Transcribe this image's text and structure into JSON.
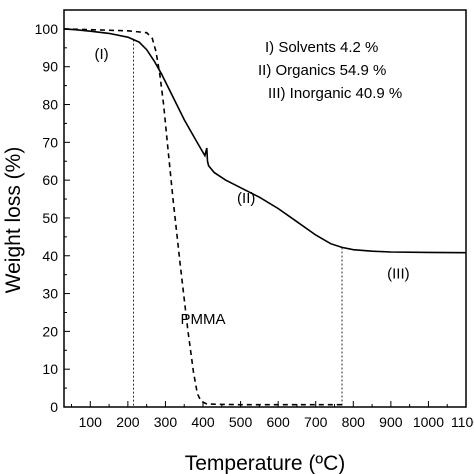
{
  "chart_data": {
    "type": "line",
    "xlabel": "Temperature (ºC)",
    "ylabel": "Weight loss (%)",
    "xlim": [
      30,
      1100
    ],
    "ylim": [
      0,
      105
    ],
    "x_ticks": [
      100,
      200,
      300,
      400,
      500,
      600,
      700,
      800,
      900,
      1000,
      1100
    ],
    "y_ticks": [
      0,
      10,
      20,
      30,
      40,
      50,
      60,
      70,
      80,
      90,
      100
    ],
    "legend_text": [
      "I) Solvents 4.2 %",
      "II) Organics 54.9 %",
      "III) Inorganic 40.9 %"
    ],
    "region_labels": [
      {
        "text": "(I)",
        "x": 130,
        "y": 92
      },
      {
        "text": "(II)",
        "x": 515,
        "y": 54
      },
      {
        "text": "(III)",
        "x": 920,
        "y": 34
      }
    ],
    "series": [
      {
        "name": "",
        "style": "solid",
        "x": [
          30,
          60,
          100,
          150,
          200,
          230,
          250,
          270,
          290,
          310,
          330,
          350,
          370,
          390,
          405,
          410,
          412,
          415,
          430,
          460,
          500,
          550,
          600,
          650,
          700,
          740,
          770,
          800,
          850,
          900,
          1000,
          1100
        ],
        "y": [
          100,
          99.8,
          99.4,
          98.8,
          97.8,
          96.5,
          94.5,
          91.5,
          88,
          84,
          80,
          76,
          72.5,
          69,
          66.5,
          68.5,
          65,
          63.8,
          62,
          60,
          58,
          55.5,
          52.5,
          49,
          45.5,
          43.2,
          42.2,
          41.6,
          41.2,
          41.0,
          40.9,
          40.8
        ]
      },
      {
        "name": "PMMA",
        "style": "dashed",
        "x": [
          30,
          100,
          200,
          250,
          265,
          275,
          285,
          295,
          305,
          320,
          340,
          360,
          375,
          385,
          395,
          410,
          450,
          500,
          600,
          700,
          780
        ],
        "y": [
          100,
          99.8,
          99.5,
          99,
          97.5,
          94,
          88,
          80,
          70,
          55,
          37,
          20,
          9,
          3.5,
          1.5,
          0.8,
          0.7,
          0.6,
          0.6,
          0.6,
          0.6
        ]
      }
    ],
    "series_label": {
      "text": "PMMA",
      "x": 340,
      "y": 22
    },
    "guide_lines_x": [
      215,
      770
    ]
  }
}
